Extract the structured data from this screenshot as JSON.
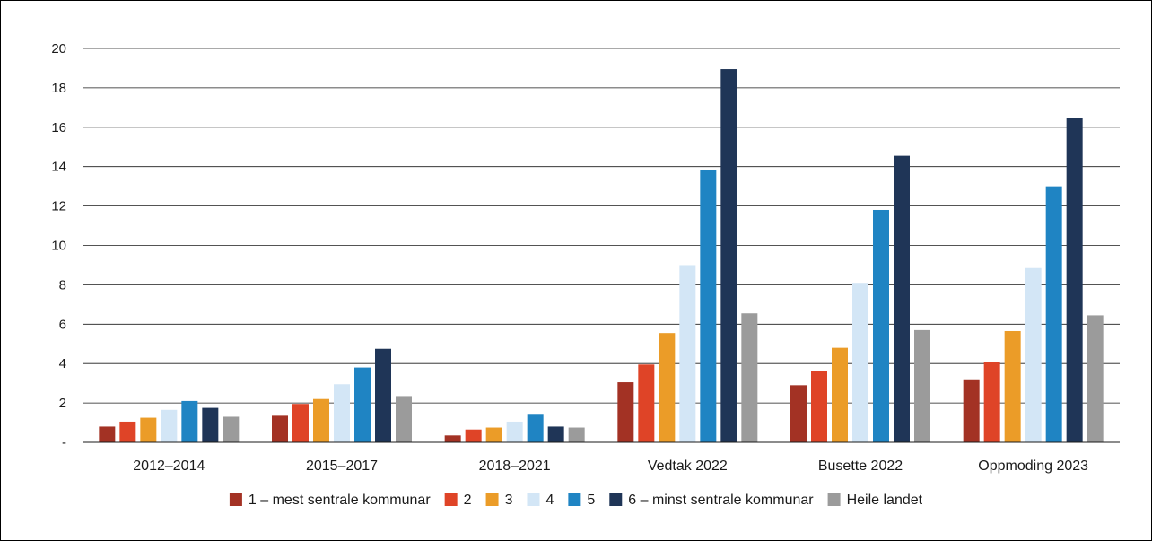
{
  "chart_data": {
    "type": "bar",
    "title": "",
    "xlabel": "",
    "ylabel": "",
    "ylim": [
      0,
      20
    ],
    "yticks": [
      0,
      2,
      4,
      6,
      8,
      10,
      12,
      14,
      16,
      18,
      20
    ],
    "ytick_labels": [
      "-",
      "2",
      "4",
      "6",
      "8",
      "10",
      "12",
      "14",
      "16",
      "18",
      "20"
    ],
    "grid": "horizontal",
    "legend_position": "bottom",
    "categories": [
      "2012–2014",
      "2015–2017",
      "2018–2021",
      "Vedtak 2022",
      "Busette 2022",
      "Oppmoding 2023"
    ],
    "series": [
      {
        "name": "1 – mest sentrale kommunar",
        "color": "#a33224",
        "values": [
          0.8,
          1.35,
          0.35,
          3.05,
          2.9,
          3.2
        ]
      },
      {
        "name": "2",
        "color": "#df4427",
        "values": [
          1.05,
          1.95,
          0.65,
          3.95,
          3.6,
          4.1
        ]
      },
      {
        "name": "3",
        "color": "#eb9c28",
        "values": [
          1.25,
          2.2,
          0.75,
          5.55,
          4.8,
          5.65
        ]
      },
      {
        "name": "4",
        "color": "#d3e6f6",
        "values": [
          1.65,
          2.95,
          1.05,
          9.0,
          8.1,
          8.85
        ]
      },
      {
        "name": "5",
        "color": "#1f84c3",
        "values": [
          2.1,
          3.8,
          1.4,
          13.85,
          11.8,
          13.0
        ]
      },
      {
        "name": "6 – minst sentrale kommunar",
        "color": "#1f3557",
        "values": [
          1.75,
          4.75,
          0.8,
          18.95,
          14.55,
          16.45
        ]
      },
      {
        "name": "Heile landet",
        "color": "#9b9b9b",
        "values": [
          1.3,
          2.35,
          0.75,
          6.55,
          5.7,
          6.45
        ]
      }
    ]
  }
}
